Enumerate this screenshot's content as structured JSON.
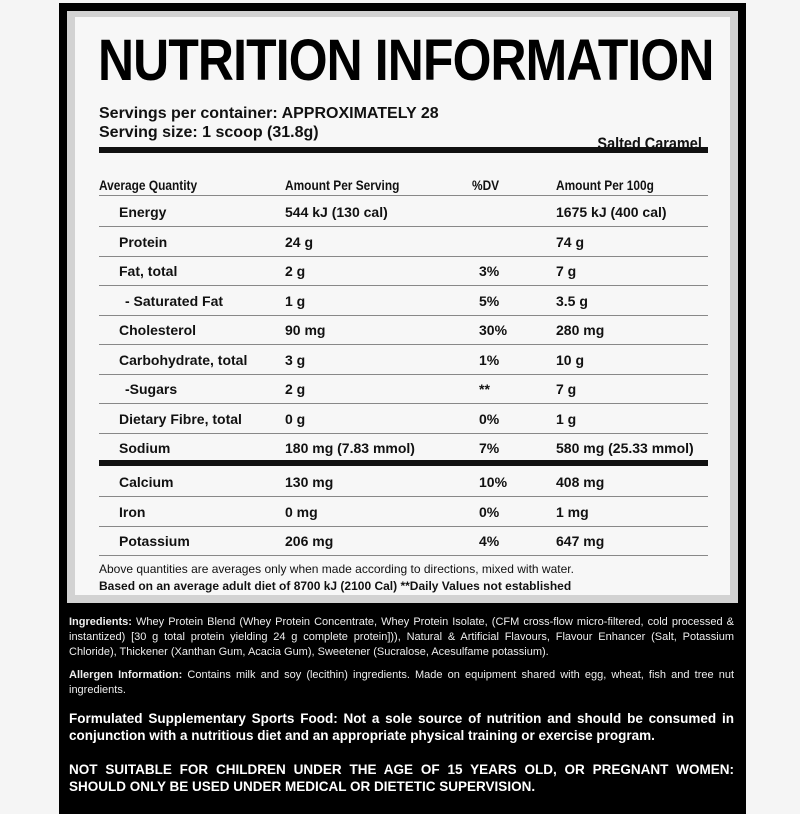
{
  "title": "NUTRITION INFORMATION",
  "servings_per_container": "Servings per container: APPROXIMATELY 28",
  "serving_size": "Serving size: 1 scoop (31.8g)",
  "flavour": "Salted Caramel",
  "headers": [
    "Average Quantity",
    "Amount Per Serving",
    "%DV",
    "Amount Per 100g"
  ],
  "rows": [
    {
      "name": "Energy",
      "serving": "544 kJ (130 cal)",
      "dv": "",
      "per100": "1675 kJ (400 cal)"
    },
    {
      "name": "Protein",
      "serving": "24 g",
      "dv": "",
      "per100": "74 g"
    },
    {
      "name": "Fat, total",
      "serving": "2 g",
      "dv": "3%",
      "per100": "7 g"
    },
    {
      "name": "- Saturated Fat",
      "serving": "1 g",
      "dv": "5%",
      "per100": "3.5 g"
    },
    {
      "name": "Cholesterol",
      "serving": "90 mg",
      "dv": "30%",
      "per100": "280 mg"
    },
    {
      "name": "Carbohydrate, total",
      "serving": "3 g",
      "dv": "1%",
      "per100": "10 g"
    },
    {
      "name": "-Sugars",
      "serving": "2 g",
      "dv": "**",
      "per100": "7 g"
    },
    {
      "name": "Dietary Fibre, total",
      "serving": "0 g",
      "dv": "0%",
      "per100": "1 g"
    },
    {
      "name": "Sodium",
      "serving": "180 mg (7.83 mmol)",
      "dv": "7%",
      "per100": "580 mg (25.33 mmol)"
    }
  ],
  "minerals": [
    {
      "name": "Calcium",
      "serving": "130 mg",
      "dv": "10%",
      "per100": "408 mg"
    },
    {
      "name": "Iron",
      "serving": "0 mg",
      "dv": "0%",
      "per100": "1 mg"
    },
    {
      "name": "Potassium",
      "serving": "206 mg",
      "dv": "4%",
      "per100": "647 mg"
    }
  ],
  "note1": "Above quantities are averages only when made according to directions, mixed with water.",
  "note2": "Based on an average adult diet of 8700 kJ (2100 Cal)  **Daily Values not established",
  "ingredients_label": "Ingredients:",
  "ingredients": "Whey Protein Blend (Whey Protein Concentrate, Whey Protein Isolate, (CFM cross-flow micro-filtered, cold processed & instantized) [30 g total protein yielding 24 g complete protein])), Natural & Artificial Flavours, Flavour Enhancer (Salt, Potassium Chloride), Thickener (Xanthan Gum, Acacia Gum), Sweetener (Sucralose, Acesulfame potassium).",
  "allergen_label": "Allergen Information:",
  "allergen": "Contains milk and soy (lecithin) ingredients. Made on equipment shared with egg, wheat, fish and tree nut ingredients.",
  "formulated": "Formulated Supplementary Sports Food: Not a sole source of nutrition and should be consumed in conjunction with a nutritious diet and an appropriate physical training or exercise program.",
  "warning": "NOT SUITABLE FOR CHILDREN UNDER THE AGE OF 15 YEARS OLD, OR PREGNANT WOMEN: SHOULD ONLY BE USED UNDER MEDICAL OR DIETETIC SUPERVISION."
}
